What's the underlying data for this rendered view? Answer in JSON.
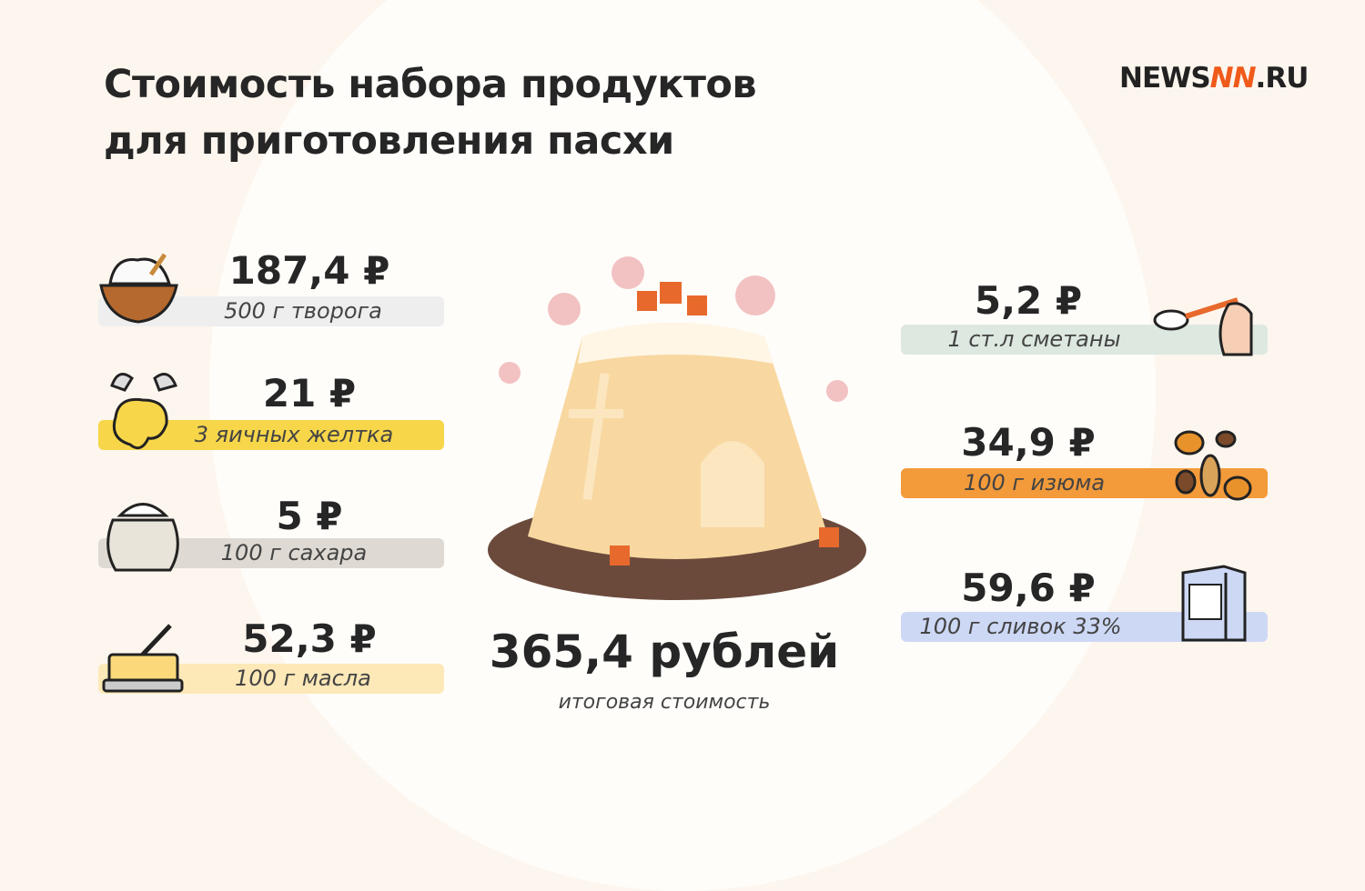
{
  "title_line1": "Стоимость набора продуктов",
  "title_line2": "для приготовления пасхи",
  "logo": {
    "left": "NEWS",
    "mark": "NN",
    "right": ".RU"
  },
  "items_left": [
    {
      "price": "187,4 ₽",
      "label": "500 г творога",
      "icon": "bowl-of-cottage-cheese-icon",
      "color": "#eeeeee"
    },
    {
      "price": "21 ₽",
      "label": "3 яичных желтка",
      "icon": "egg-yolk-icon",
      "color": "#f7d64a"
    },
    {
      "price": "5 ₽",
      "label": "100 г сахара",
      "icon": "sugar-sack-icon",
      "color": "#dedad3"
    },
    {
      "price": "52,3 ₽",
      "label": "100 г масла",
      "icon": "butter-dish-icon",
      "color": "#fde8b8"
    }
  ],
  "items_right": [
    {
      "price": "5,2  ₽",
      "label": "1 ст.л сметаны",
      "icon": "spoon-icon",
      "color": "#dde8e0"
    },
    {
      "price": "34,9 ₽",
      "label": "100 г изюма",
      "icon": "raisins-icon",
      "color": "#f39a3a"
    },
    {
      "price": "59,6 ₽",
      "label": "100 г сливок 33%",
      "icon": "cream-carton-icon",
      "color": "#cdd8f5"
    }
  ],
  "total": {
    "value": "365,4 рублей",
    "label": "итоговая стоимость"
  }
}
